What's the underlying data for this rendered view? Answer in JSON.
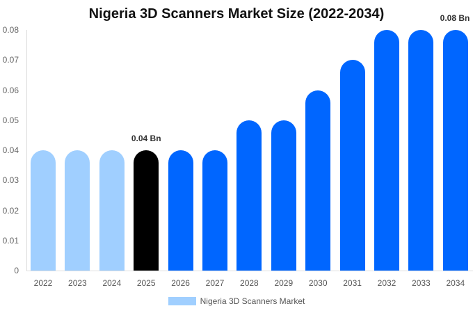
{
  "chart_data": {
    "type": "bar",
    "title": "Nigeria 3D Scanners Market Size (2022-2034)",
    "xlabel": "",
    "ylabel": "",
    "categories": [
      "2022",
      "2023",
      "2024",
      "2025",
      "2026",
      "2027",
      "2028",
      "2029",
      "2030",
      "2031",
      "2032",
      "2033",
      "2034"
    ],
    "series": [
      {
        "name": "Nigeria 3D Scanners Market",
        "values": [
          0.04,
          0.04,
          0.04,
          0.04,
          0.04,
          0.04,
          0.05,
          0.05,
          0.06,
          0.07,
          0.08,
          0.08,
          0.08
        ]
      }
    ],
    "bar_colors": [
      "#a0cfff",
      "#a0cfff",
      "#a0cfff",
      "#000000",
      "#0066ff",
      "#0066ff",
      "#0066ff",
      "#0066ff",
      "#0066ff",
      "#0066ff",
      "#0066ff",
      "#0066ff",
      "#0066ff"
    ],
    "ylim": [
      0,
      0.08
    ],
    "yticks": [
      "0",
      "0.01",
      "0.02",
      "0.03",
      "0.04",
      "0.05",
      "0.06",
      "0.07",
      "0.08"
    ],
    "annotations": [
      {
        "category": "2025",
        "text": "0.04 Bn"
      },
      {
        "category": "2034",
        "text": "0.08 Bn"
      }
    ],
    "legend": {
      "position": "bottom",
      "label": "Nigeria 3D Scanners Market",
      "swatch_color": "#a0cfff"
    },
    "grid": false
  },
  "title": "Nigeria 3D Scanners Market Size (2022-2034)",
  "legend_label": "Nigeria 3D Scanners Market"
}
